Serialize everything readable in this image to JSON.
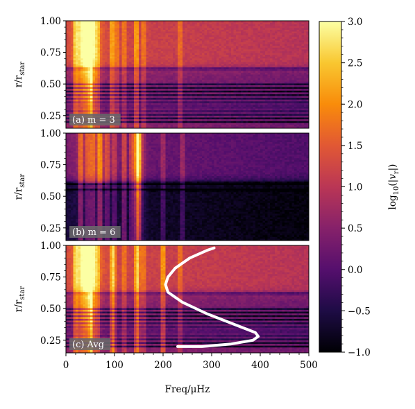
{
  "chart_data": {
    "type": "heatmap",
    "colormap": "inferno",
    "panels": [
      {
        "label": "(a) m = 3",
        "bright_columns_uHz": [
          20,
          30,
          40,
          50,
          55,
          65,
          95,
          105,
          120,
          145,
          160,
          235
        ],
        "dark_bands_r": [
          0.2,
          0.23,
          0.26,
          0.29,
          0.32,
          0.35,
          0.38,
          0.41,
          0.44,
          0.47,
          0.5,
          0.62
        ],
        "outer_level": 1.3,
        "inner_level": 0.6
      },
      {
        "label": "(b) m = 6",
        "bright_columns_uHz": [
          30,
          45,
          55,
          70,
          85,
          100,
          120,
          135,
          145,
          150,
          200,
          240
        ],
        "dark_bands_r": [
          0.55,
          0.6
        ],
        "outer_level": 0.3,
        "inner_level": -0.6
      },
      {
        "label": "(c) Avg",
        "bright_columns_uHz": [
          20,
          30,
          40,
          50,
          55,
          65,
          95,
          100,
          120,
          145,
          150,
          160,
          200,
          235
        ],
        "dark_bands_r": [
          0.2,
          0.23,
          0.26,
          0.29,
          0.32,
          0.35,
          0.38,
          0.41,
          0.44,
          0.47,
          0.5,
          0.62
        ],
        "outer_level": 1.3,
        "inner_level": 0.6,
        "overlay_curve": {
          "freq_uHz": [
            305,
            290,
            255,
            225,
            210,
            205,
            210,
            240,
            290,
            350,
            390,
            396,
            385,
            340,
            280,
            230
          ],
          "r": [
            0.98,
            0.96,
            0.9,
            0.82,
            0.75,
            0.69,
            0.63,
            0.55,
            0.46,
            0.37,
            0.31,
            0.28,
            0.25,
            0.22,
            0.2,
            0.2
          ]
        }
      }
    ],
    "x": {
      "label": "Freq/μHz",
      "range": [
        0,
        500
      ],
      "ticks": [
        0,
        100,
        200,
        300,
        400,
        500
      ],
      "tick_labels": [
        "0",
        "100",
        "200",
        "300",
        "400",
        "500"
      ]
    },
    "y": {
      "label_main": "r/r",
      "label_sub": "star",
      "range": [
        0.15,
        1.0
      ],
      "ticks": [
        0.25,
        0.5,
        0.75,
        1.0
      ],
      "tick_labels": [
        "0.25",
        "0.50",
        "0.75",
        "1.00"
      ]
    },
    "colorbar": {
      "label": "log10(|vr|)",
      "label_parts": {
        "pre": "log",
        "sub1": "10",
        "mid": "(|",
        "v": "v",
        "sub2": "r",
        "post": "|)"
      },
      "range": [
        -1.0,
        3.0
      ],
      "ticks": [
        -1.0,
        -0.5,
        0.0,
        0.5,
        1.0,
        1.5,
        2.0,
        2.5,
        3.0
      ],
      "tick_labels": [
        "−1.0",
        "−0.5",
        "0.0",
        "0.5",
        "1.0",
        "1.5",
        "2.0",
        "2.5",
        "3.0"
      ]
    }
  }
}
